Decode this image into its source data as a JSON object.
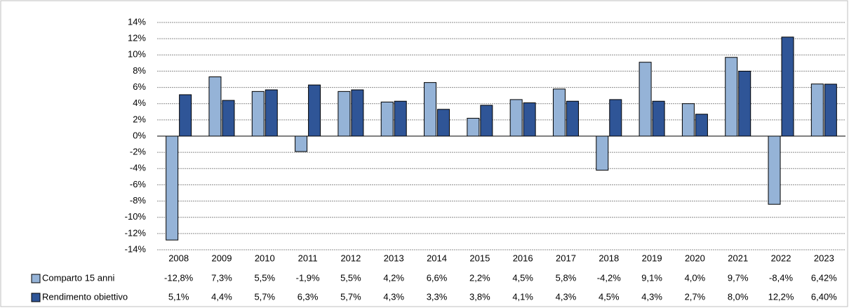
{
  "chart_data": {
    "type": "bar",
    "categories": [
      "2008",
      "2009",
      "2010",
      "2011",
      "2012",
      "2013",
      "2014",
      "2015",
      "2016",
      "2017",
      "2018",
      "2019",
      "2020",
      "2021",
      "2022",
      "2023"
    ],
    "series": [
      {
        "name": "Comparto 15 anni",
        "color": "#95b3d7",
        "values": [
          -12.8,
          7.3,
          5.5,
          -1.9,
          5.5,
          4.2,
          6.6,
          2.2,
          4.5,
          5.8,
          -4.2,
          9.1,
          4.0,
          9.7,
          -8.4,
          6.42
        ],
        "value_labels": [
          "-12,8%",
          "7,3%",
          "5,5%",
          "-1,9%",
          "5,5%",
          "4,2%",
          "6,6%",
          "2,2%",
          "4,5%",
          "5,8%",
          "-4,2%",
          "9,1%",
          "4,0%",
          "9,7%",
          "-8,4%",
          "6,42%"
        ]
      },
      {
        "name": "Rendimento obiettivo",
        "color": "#2f5597",
        "values": [
          5.1,
          4.4,
          5.7,
          6.3,
          5.7,
          4.3,
          3.3,
          3.8,
          4.1,
          4.3,
          4.5,
          4.3,
          2.7,
          8.0,
          12.2,
          6.4
        ],
        "value_labels": [
          "5,1%",
          "4,4%",
          "5,7%",
          "6,3%",
          "5,7%",
          "4,3%",
          "3,3%",
          "3,8%",
          "4,1%",
          "4,3%",
          "4,5%",
          "4,3%",
          "2,7%",
          "8,0%",
          "12,2%",
          "6,40%"
        ]
      }
    ],
    "ylim": [
      -14,
      14
    ],
    "yticks": [
      {
        "value": -14,
        "label": "-14%"
      },
      {
        "value": -12,
        "label": "-12%"
      },
      {
        "value": -10,
        "label": "-10%"
      },
      {
        "value": -8,
        "label": "-8%"
      },
      {
        "value": -6,
        "label": "-6%"
      },
      {
        "value": -4,
        "label": "-4%"
      },
      {
        "value": -2,
        "label": "-2%"
      },
      {
        "value": 0,
        "label": "0%"
      },
      {
        "value": 2,
        "label": "2%"
      },
      {
        "value": 4,
        "label": "4%"
      },
      {
        "value": 6,
        "label": "6%"
      },
      {
        "value": 8,
        "label": "8%"
      },
      {
        "value": 10,
        "label": "10%"
      },
      {
        "value": 12,
        "label": "12%"
      },
      {
        "value": 14,
        "label": "14%"
      }
    ],
    "grid": true
  }
}
